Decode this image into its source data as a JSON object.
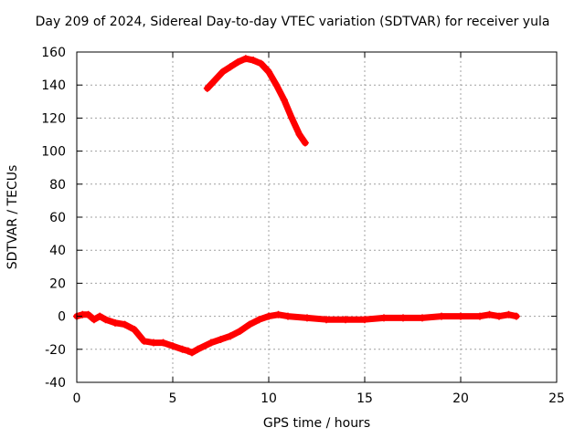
{
  "chart_data": {
    "type": "scatter",
    "title": "Day 209 of 2024, Sidereal Day-to-day VTEC variation (SDTVAR) for receiver yula",
    "xlabel": "GPS time / hours",
    "ylabel": "SDTVAR / TECUs",
    "xlim": [
      0,
      25
    ],
    "ylim": [
      -40,
      160
    ],
    "xticks": [
      0,
      5,
      10,
      15,
      20,
      25
    ],
    "yticks": [
      -40,
      -20,
      0,
      20,
      40,
      60,
      80,
      100,
      120,
      140,
      160
    ],
    "grid": true,
    "marker": "+",
    "series": [
      {
        "name": "SDTVAR",
        "color": "#ff0000",
        "segments": [
          {
            "x": [
              6.8,
              7.2,
              7.6,
              8.0,
              8.4,
              8.8,
              9.2,
              9.6,
              10.0,
              10.4,
              10.8,
              11.2,
              11.6,
              11.9
            ],
            "y": [
              138,
              143,
              148,
              151,
              154,
              156,
              155,
              153,
              148,
              140,
              131,
              120,
              110,
              105
            ]
          },
          {
            "x": [
              0.0,
              0.3,
              0.6,
              0.9,
              1.2,
              1.5,
              2.0,
              2.5,
              3.0,
              3.5,
              4.0,
              4.5,
              5.0,
              5.5,
              5.8,
              6.0,
              6.3,
              7.0,
              7.5,
              8.0,
              8.5,
              9.0,
              9.5,
              10.0,
              10.5,
              11.0,
              12.0,
              13.0,
              14.0,
              15.0,
              16.0,
              17.0,
              18.0,
              19.0,
              20.0,
              21.0,
              21.5,
              22.0,
              22.5,
              22.9
            ],
            "y": [
              0,
              1,
              1,
              -2,
              0,
              -2,
              -4,
              -5,
              -8,
              -15,
              -16,
              -16,
              -18,
              -20,
              -21,
              -22,
              -20,
              -16,
              -14,
              -12,
              -9,
              -5,
              -2,
              0,
              1,
              0,
              -1,
              -2,
              -2,
              -2,
              -1,
              -1,
              -1,
              0,
              0,
              0,
              1,
              0,
              1,
              0
            ]
          }
        ]
      }
    ]
  }
}
